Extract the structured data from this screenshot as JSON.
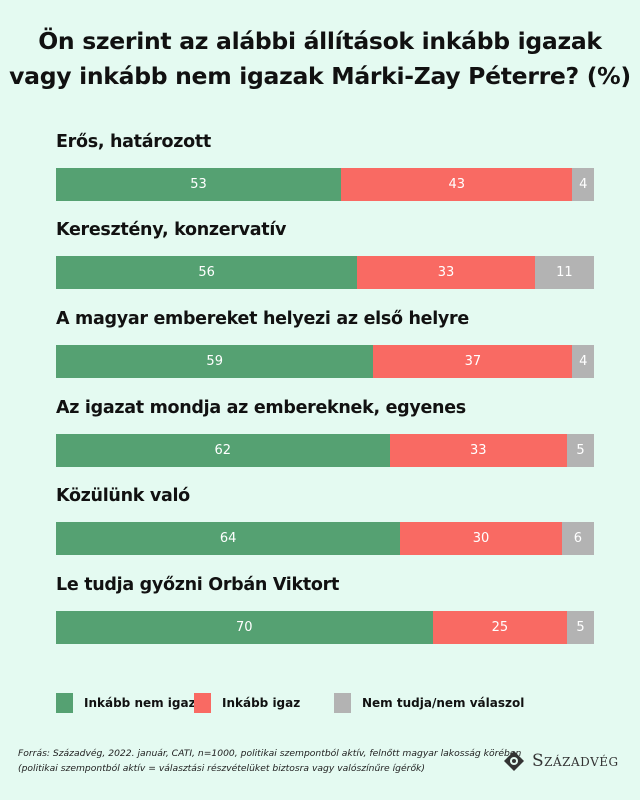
{
  "chart_data": {
    "type": "bar",
    "stacked": true,
    "orientation": "horizontal",
    "title": "Ön szerint az alábbi állítások inkább igazak vagy inkább nem igazak Márki-Zay Péterre? (%)",
    "title_lines": [
      "Ön szerint az alábbi állítások inkább igazak",
      "vagy inkább nem igazak Márki-Zay Péterre? (%)"
    ],
    "categories": [
      "Erős, határozott",
      "Keresztény, konzervatív",
      "A magyar embereket helyezi az első helyre",
      "Az igazat mondja az embereknek, egyenes",
      "Közülünk való",
      "Le tudja győzni Orbán Viktort"
    ],
    "series": [
      {
        "name": "Inkább nem igaz",
        "color": "#55a172",
        "values": [
          53,
          56,
          59,
          62,
          64,
          70
        ]
      },
      {
        "name": "Inkább igaz",
        "color": "#f96a63",
        "values": [
          43,
          33,
          37,
          33,
          30,
          25
        ]
      },
      {
        "name": "Nem tudja/nem válaszol",
        "color": "#b3b3b3",
        "values": [
          4,
          11,
          4,
          5,
          6,
          5
        ]
      }
    ],
    "xlim": [
      0,
      100
    ],
    "legend": "bottom"
  },
  "footer": {
    "source_line1": "Forrás: Századvég, 2022. január, CATI, n=1000, politikai szempontból aktív, felnőtt magyar lakosság körében",
    "source_line2": "(politikai szempontból aktív = választási részvételüket biztosra vagy valószínűre ígérők)",
    "logo": "Századvég"
  }
}
